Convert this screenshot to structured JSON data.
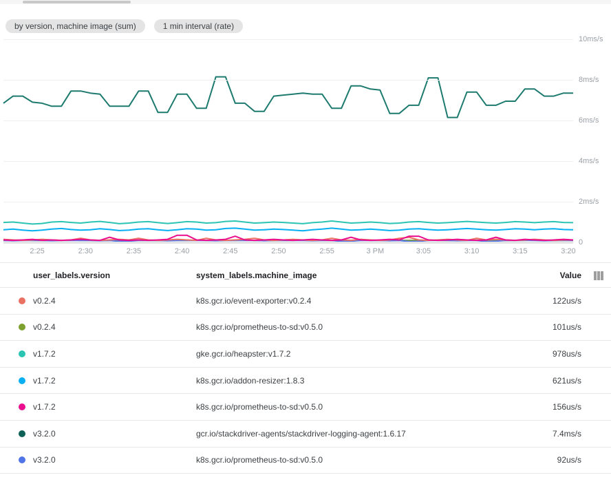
{
  "top": {
    "scrollbar_thumb": "horizontal-scrollbar-thumb"
  },
  "chips": {
    "items": [
      "by version, machine image (sum)",
      "1 min interval (rate)"
    ]
  },
  "chart_data": {
    "type": "line",
    "title": "",
    "xlabel": "",
    "ylabel": "",
    "unit": "ms/s",
    "ylim": [
      0,
      10
    ],
    "grid": "horizontal",
    "legend_position": "table-below",
    "y_ticks": [
      {
        "value": 10,
        "label": "10ms/s"
      },
      {
        "value": 8,
        "label": "8ms/s"
      },
      {
        "value": 6,
        "label": "6ms/s"
      },
      {
        "value": 4,
        "label": "4ms/s"
      },
      {
        "value": 2,
        "label": "2ms/s"
      },
      {
        "value": 0,
        "label": "0"
      }
    ],
    "x_ticks": [
      {
        "minute": 3.5,
        "label": "2:25"
      },
      {
        "minute": 8.5,
        "label": "2:30"
      },
      {
        "minute": 13.5,
        "label": "2:35"
      },
      {
        "minute": 18.5,
        "label": "2:40"
      },
      {
        "minute": 23.5,
        "label": "2:45"
      },
      {
        "minute": 28.5,
        "label": "2:50"
      },
      {
        "minute": 33.5,
        "label": "2:55"
      },
      {
        "minute": 38.5,
        "label": "3 PM"
      },
      {
        "minute": 43.5,
        "label": "3:05"
      },
      {
        "minute": 48.5,
        "label": "3:10"
      },
      {
        "minute": 53.5,
        "label": "3:15"
      },
      {
        "minute": 58.5,
        "label": "3:20"
      }
    ],
    "duration_minutes": 59,
    "series": [
      {
        "name": "v0.2.4 k8s.gcr.io/prometheus-to-sd:v0.5.0",
        "color": "#7da12f",
        "values": [
          0.1,
          0.1,
          0.11,
          0.1,
          0.09,
          0.1,
          0.1,
          0.11,
          0.1,
          0.1,
          0.09,
          0.1,
          0.1,
          0.11,
          0.1,
          0.1,
          0.09,
          0.1,
          0.1,
          0.1,
          0.11,
          0.1,
          0.09,
          0.1,
          0.1,
          0.11,
          0.1,
          0.1,
          0.09,
          0.1,
          0.1,
          0.11,
          0.1,
          0.1,
          0.09,
          0.1,
          0.1,
          0.11,
          0.1,
          0.1,
          0.09,
          0.1,
          0.1,
          0.1,
          0.11,
          0.1,
          0.09,
          0.1,
          0.1,
          0.11,
          0.1,
          0.1,
          0.09,
          0.1,
          0.1,
          0.11,
          0.1,
          0.09,
          0.1,
          0.1
        ]
      },
      {
        "name": "v3.2.0 k8s.gcr.io/prometheus-to-sd:v0.5.0",
        "color": "#4e74e8",
        "values": [
          0.09,
          0.08,
          0.09,
          0.1,
          0.09,
          0.08,
          0.09,
          0.09,
          0.1,
          0.09,
          0.08,
          0.09,
          0.05,
          0.06,
          0.09,
          0.1,
          0.09,
          0.08,
          0.09,
          0.09,
          0.1,
          0.09,
          0.08,
          0.09,
          0.09,
          0.1,
          0.09,
          0.08,
          0.09,
          0.09,
          0.1,
          0.09,
          0.08,
          0.09,
          0.09,
          0.05,
          0.06,
          0.09,
          0.1,
          0.09,
          0.08,
          0.09,
          0.04,
          0.05,
          0.09,
          0.1,
          0.09,
          0.08,
          0.09,
          0.09,
          0.04,
          0.06,
          0.09,
          0.09,
          0.1,
          0.09,
          0.08,
          0.09,
          0.09,
          0.09
        ]
      },
      {
        "name": "v0.2.4 k8s.gcr.io/event-exporter:v0.2.4",
        "color": "#ea7061",
        "values": [
          0.15,
          0.12,
          0.1,
          0.12,
          0.15,
          0.12,
          0.1,
          0.12,
          0.2,
          0.12,
          0.1,
          0.12,
          0.15,
          0.12,
          0.2,
          0.12,
          0.1,
          0.12,
          0.15,
          0.12,
          0.1,
          0.2,
          0.12,
          0.1,
          0.12,
          0.15,
          0.2,
          0.12,
          0.1,
          0.12,
          0.15,
          0.12,
          0.1,
          0.12,
          0.2,
          0.12,
          0.1,
          0.15,
          0.12,
          0.1,
          0.12,
          0.2,
          0.25,
          0.12,
          0.1,
          0.12,
          0.15,
          0.12,
          0.1,
          0.2,
          0.12,
          0.15,
          0.12,
          0.1,
          0.12,
          0.15,
          0.12,
          0.1,
          0.12,
          0.12
        ]
      },
      {
        "name": "v1.7.2 k8s.gcr.io/prometheus-to-sd:v0.5.0",
        "color": "#ea0d8d",
        "values": [
          0.12,
          0.1,
          0.12,
          0.15,
          0.1,
          0.12,
          0.1,
          0.12,
          0.15,
          0.12,
          0.1,
          0.25,
          0.12,
          0.1,
          0.12,
          0.1,
          0.12,
          0.15,
          0.35,
          0.35,
          0.12,
          0.1,
          0.12,
          0.15,
          0.3,
          0.12,
          0.1,
          0.12,
          0.15,
          0.12,
          0.1,
          0.12,
          0.15,
          0.12,
          0.1,
          0.12,
          0.25,
          0.12,
          0.1,
          0.12,
          0.15,
          0.12,
          0.3,
          0.3,
          0.12,
          0.1,
          0.12,
          0.15,
          0.12,
          0.1,
          0.12,
          0.25,
          0.12,
          0.1,
          0.15,
          0.12,
          0.1,
          0.12,
          0.15,
          0.12
        ]
      },
      {
        "name": "v1.7.2 k8s.gcr.io/addon-resizer:1.8.3",
        "color": "#06aff1",
        "values": [
          0.62,
          0.65,
          0.6,
          0.57,
          0.6,
          0.65,
          0.68,
          0.63,
          0.6,
          0.62,
          0.67,
          0.63,
          0.58,
          0.6,
          0.65,
          0.67,
          0.62,
          0.58,
          0.62,
          0.67,
          0.65,
          0.6,
          0.62,
          0.68,
          0.7,
          0.65,
          0.6,
          0.62,
          0.65,
          0.63,
          0.6,
          0.57,
          0.62,
          0.65,
          0.7,
          0.65,
          0.6,
          0.62,
          0.65,
          0.62,
          0.58,
          0.6,
          0.65,
          0.67,
          0.63,
          0.6,
          0.62,
          0.65,
          0.68,
          0.65,
          0.62,
          0.6,
          0.63,
          0.67,
          0.65,
          0.62,
          0.65,
          0.67,
          0.63,
          0.62
        ]
      },
      {
        "name": "v1.7.2 gke.gcr.io/heapster:v1.7.2",
        "color": "#2bc4b2",
        "values": [
          0.98,
          1.0,
          0.95,
          0.9,
          0.93,
          1.0,
          1.02,
          0.98,
          0.95,
          1.0,
          1.03,
          0.98,
          0.92,
          0.95,
          1.0,
          1.02,
          0.97,
          0.93,
          0.97,
          1.02,
          1.0,
          0.95,
          0.97,
          1.03,
          1.05,
          1.0,
          0.95,
          0.97,
          1.0,
          0.98,
          0.95,
          0.92,
          0.97,
          1.0,
          1.05,
          1.0,
          0.95,
          0.97,
          1.0,
          0.97,
          0.93,
          0.95,
          1.0,
          1.02,
          0.98,
          0.95,
          0.97,
          1.0,
          1.03,
          1.0,
          0.97,
          0.95,
          0.98,
          1.02,
          1.0,
          0.97,
          1.0,
          1.02,
          0.98,
          0.97
        ]
      },
      {
        "name": "v3.2.0 gcr.io/stackdriver-agents/stackdriver-logging-agent:1.6.17",
        "color": "#1d7a6e",
        "values": [
          6.85,
          7.2,
          7.2,
          6.9,
          6.85,
          6.7,
          6.7,
          7.45,
          7.45,
          7.35,
          7.3,
          6.7,
          6.7,
          6.7,
          7.45,
          7.45,
          6.4,
          6.4,
          7.3,
          7.3,
          6.6,
          6.6,
          8.15,
          8.15,
          6.85,
          6.85,
          6.45,
          6.45,
          7.2,
          7.25,
          7.3,
          7.35,
          7.3,
          7.3,
          6.6,
          6.6,
          7.7,
          7.7,
          7.55,
          7.5,
          6.35,
          6.35,
          6.75,
          6.75,
          8.1,
          8.1,
          6.15,
          6.15,
          7.4,
          7.4,
          6.75,
          6.75,
          6.95,
          6.95,
          7.55,
          7.55,
          7.2,
          7.2,
          7.35,
          7.35
        ]
      }
    ]
  },
  "table": {
    "columns": [
      "user_labels.version",
      "system_labels.machine_image",
      "Value"
    ],
    "columns_icon": "column-settings-icon",
    "rows": [
      {
        "color": "#ea7061",
        "version": "v0.2.4",
        "machine_image": "k8s.gcr.io/event-exporter:v0.2.4",
        "value": "122us/s"
      },
      {
        "color": "#7da12f",
        "version": "v0.2.4",
        "machine_image": "k8s.gcr.io/prometheus-to-sd:v0.5.0",
        "value": "101us/s"
      },
      {
        "color": "#2bc4b2",
        "version": "v1.7.2",
        "machine_image": "gke.gcr.io/heapster:v1.7.2",
        "value": "978us/s"
      },
      {
        "color": "#06aff1",
        "version": "v1.7.2",
        "machine_image": "k8s.gcr.io/addon-resizer:1.8.3",
        "value": "621us/s"
      },
      {
        "color": "#ea0d8d",
        "version": "v1.7.2",
        "machine_image": "k8s.gcr.io/prometheus-to-sd:v0.5.0",
        "value": "156us/s"
      },
      {
        "color": "#0d6156",
        "version": "v3.2.0",
        "machine_image": "gcr.io/stackdriver-agents/stackdriver-logging-agent:1.6.17",
        "value": "7.4ms/s"
      },
      {
        "color": "#4e74e8",
        "version": "v3.2.0",
        "machine_image": "k8s.gcr.io/prometheus-to-sd:v0.5.0",
        "value": "92us/s"
      }
    ]
  }
}
